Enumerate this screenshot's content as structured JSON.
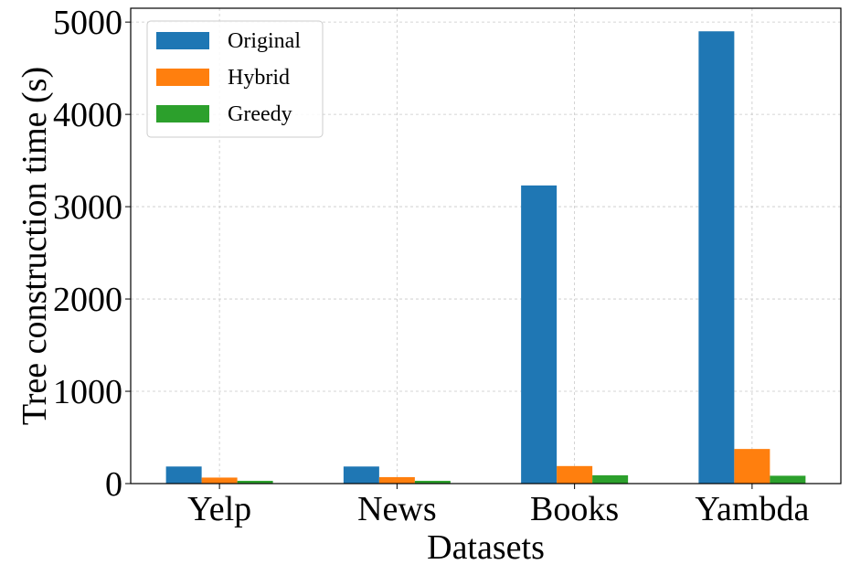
{
  "chart_data": {
    "type": "bar",
    "title": "",
    "xlabel": "Datasets",
    "ylabel": "Tree construction time (s)",
    "categories": [
      "Yelp",
      "News",
      "Books",
      "Yambda"
    ],
    "series": [
      {
        "name": "Original",
        "color": "#1f77b4",
        "values": [
          185,
          185,
          3230,
          4900
        ]
      },
      {
        "name": "Hybrid",
        "color": "#ff7f0e",
        "values": [
          65,
          70,
          190,
          375
        ]
      },
      {
        "name": "Greedy",
        "color": "#2ca02c",
        "values": [
          30,
          30,
          90,
          85
        ]
      }
    ],
    "ylim": [
      0,
      5150
    ],
    "yticks": [
      0,
      1000,
      2000,
      3000,
      4000,
      5000
    ],
    "grid": true,
    "legend_position": "top-left"
  }
}
